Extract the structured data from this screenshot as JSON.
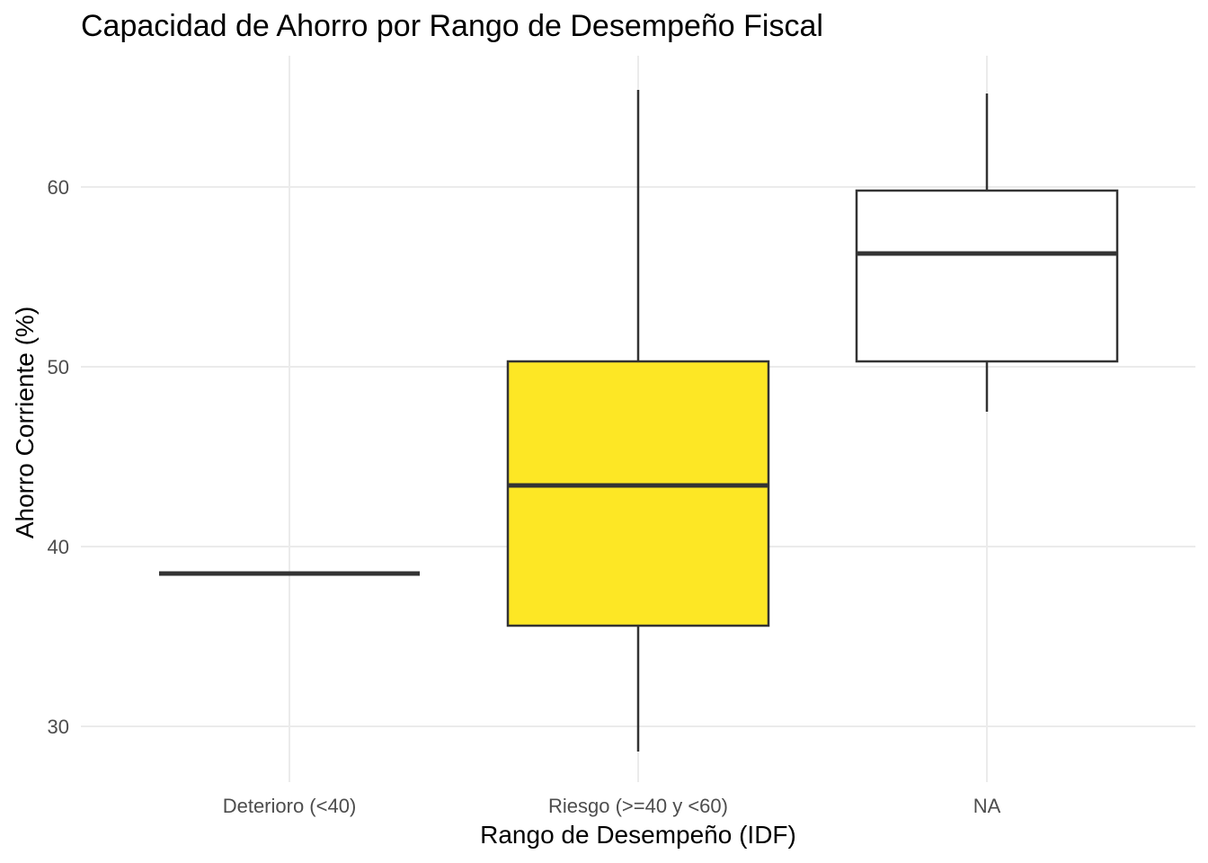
{
  "chart_data": {
    "type": "box",
    "title": "Capacidad de Ahorro por Rango de Desempeño Fiscal",
    "xlabel": "Rango de Desempeño (IDF)",
    "ylabel": "Ahorro Corriente (%)",
    "ylim": [
      27,
      68
    ],
    "yticks": [
      30,
      40,
      50,
      60
    ],
    "grid": true,
    "categories": [
      "Deterioro (<40)",
      "Riesgo (>=40 y <60)",
      "NA"
    ],
    "boxes": [
      {
        "category": "Deterioro (<40)",
        "min": 38.5,
        "q1": 38.5,
        "median": 38.5,
        "q3": 38.5,
        "max": 38.5,
        "fill": "#ffffff"
      },
      {
        "category": "Riesgo (>=40 y <60)",
        "min": 28.6,
        "q1": 35.6,
        "median": 43.4,
        "q3": 50.3,
        "max": 65.4,
        "fill": "#fde725"
      },
      {
        "category": "NA",
        "min": 47.5,
        "q1": 50.3,
        "median": 56.3,
        "q3": 59.8,
        "max": 65.2,
        "fill": "#ffffff"
      }
    ]
  }
}
